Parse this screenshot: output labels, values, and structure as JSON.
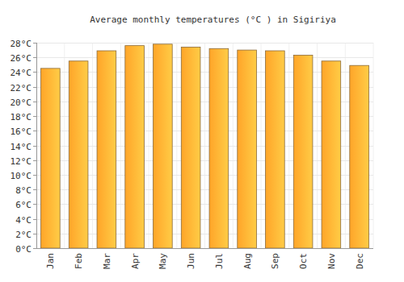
{
  "chart_data": {
    "type": "bar",
    "title": "Average monthly temperatures (°C ) in Sigiriya",
    "categories": [
      "Jan",
      "Feb",
      "Mar",
      "Apr",
      "May",
      "Jun",
      "Jul",
      "Aug",
      "Sep",
      "Oct",
      "Nov",
      "Dec"
    ],
    "values": [
      24.5,
      25.5,
      26.9,
      27.6,
      27.8,
      27.4,
      27.2,
      27.0,
      26.9,
      26.3,
      25.5,
      24.9
    ],
    "color": "#ffa529",
    "ylim": [
      0,
      28
    ],
    "yticks": [
      {
        "value": 0,
        "label": "0°C"
      },
      {
        "value": 2,
        "label": "2°C"
      },
      {
        "value": 4,
        "label": "4°C"
      },
      {
        "value": 6,
        "label": "6°C"
      },
      {
        "value": 8,
        "label": "8°C"
      },
      {
        "value": 10,
        "label": "10°C"
      },
      {
        "value": 12,
        "label": "12°C"
      },
      {
        "value": 14,
        "label": "14°C"
      },
      {
        "value": 16,
        "label": "16°C"
      },
      {
        "value": 18,
        "label": "18°C"
      },
      {
        "value": 20,
        "label": "20°C"
      },
      {
        "value": 22,
        "label": "22°C"
      },
      {
        "value": 24,
        "label": "24°C"
      },
      {
        "value": 26,
        "label": "26°C"
      },
      {
        "value": 28,
        "label": "28°C"
      }
    ],
    "grid": true
  }
}
